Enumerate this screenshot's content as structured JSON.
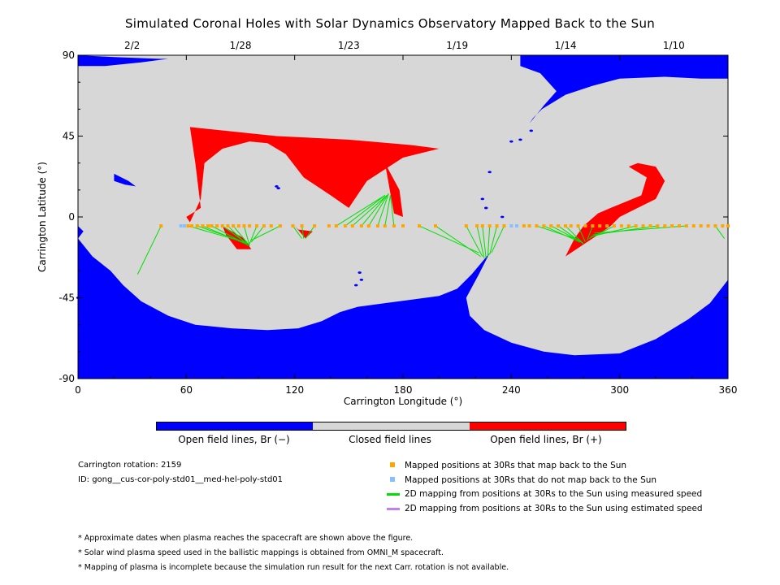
{
  "title": "Simulated Coronal Holes with Solar Dynamics Observatory Mapped Back to the Sun",
  "colors": {
    "open_negative": "#0000ff",
    "closed": "#d7d7d7",
    "open_positive": "#ff0000",
    "mapped": "#ffa500",
    "unmapped": "#87bfff",
    "measured_line": "#00e000",
    "estimated_line": "#c080f0"
  },
  "chart_data": {
    "type": "map",
    "xlabel": "Carrington Longitude (°)",
    "ylabel": "Carrington Latitude (°)",
    "xlim": [
      0,
      360
    ],
    "ylim": [
      -90,
      90
    ],
    "x_ticks": [
      0,
      60,
      120,
      180,
      240,
      300,
      360
    ],
    "y_ticks": [
      90,
      45,
      0,
      -45,
      -90
    ],
    "top_axis": {
      "labels": [
        "2/2",
        "1/28",
        "1/23",
        "1/19",
        "1/14",
        "1/10"
      ],
      "longitudes": [
        30,
        90,
        150,
        210,
        270,
        330
      ]
    },
    "colorbar": [
      {
        "label": "Open field lines, Br (−)",
        "color": "#0000ff"
      },
      {
        "label": "Closed field lines",
        "color": "#d7d7d7"
      },
      {
        "label": "Open field lines, Br (+)",
        "color": "#ff0000"
      }
    ],
    "positive_polarity_regions": [
      [
        [
          62,
          50
        ],
        [
          110,
          45
        ],
        [
          150,
          43
        ],
        [
          185,
          40
        ],
        [
          200,
          38
        ],
        [
          180,
          33
        ],
        [
          160,
          20
        ],
        [
          150,
          5
        ],
        [
          140,
          12
        ],
        [
          125,
          22
        ],
        [
          115,
          35
        ],
        [
          105,
          41
        ],
        [
          95,
          42
        ],
        [
          80,
          38
        ],
        [
          70,
          30
        ],
        [
          68,
          10
        ],
        [
          62,
          -3
        ],
        [
          60,
          0
        ],
        [
          68,
          5
        ],
        [
          65,
          30
        ],
        [
          62,
          50
        ]
      ],
      [
        [
          170,
          30
        ],
        [
          178,
          15
        ],
        [
          180,
          0
        ],
        [
          175,
          2
        ],
        [
          170,
          30
        ]
      ],
      [
        [
          120,
          -5
        ],
        [
          126,
          -12
        ],
        [
          130,
          -8
        ],
        [
          122,
          -7
        ]
      ],
      [
        [
          80,
          -5
        ],
        [
          92,
          -12
        ],
        [
          96,
          -18
        ],
        [
          88,
          -18
        ],
        [
          82,
          -10
        ]
      ],
      [
        [
          270,
          -22
        ],
        [
          285,
          -12
        ],
        [
          295,
          -5
        ],
        [
          300,
          0
        ],
        [
          310,
          5
        ],
        [
          320,
          10
        ],
        [
          325,
          20
        ],
        [
          320,
          28
        ],
        [
          310,
          30
        ],
        [
          305,
          28
        ],
        [
          315,
          22
        ],
        [
          312,
          12
        ],
        [
          295,
          5
        ],
        [
          288,
          2
        ],
        [
          280,
          -5
        ],
        [
          275,
          -12
        ],
        [
          270,
          -22
        ]
      ]
    ],
    "mapped_points": {
      "latitude": -5,
      "longitudes": [
        46,
        61,
        63,
        66,
        69,
        72,
        74,
        77,
        80,
        83,
        86,
        89,
        92,
        95,
        99,
        103,
        107,
        112,
        119,
        124,
        131,
        139,
        143,
        148,
        152,
        157,
        161,
        166,
        170,
        175,
        180,
        189,
        198,
        215,
        221,
        224,
        228,
        232,
        236,
        247,
        250,
        254,
        258,
        262,
        266,
        270,
        273,
        277,
        281,
        285,
        289,
        293,
        297,
        301,
        305,
        309,
        313,
        317,
        321,
        325,
        329,
        333,
        337,
        341,
        345,
        349,
        353,
        357,
        360
      ]
    },
    "unmapped_points": {
      "latitude": -5,
      "longitudes": [
        57,
        59,
        240,
        243
      ]
    },
    "mapping_lines": [
      {
        "from": [
          46,
          -5
        ],
        "to": [
          33,
          -32
        ]
      },
      {
        "from": [
          61,
          -5
        ],
        "to": [
          92,
          -14
        ]
      },
      {
        "from": [
          66,
          -5
        ],
        "to": [
          92,
          -14
        ]
      },
      {
        "from": [
          69,
          -5
        ],
        "to": [
          93,
          -15
        ]
      },
      {
        "from": [
          74,
          -5
        ],
        "to": [
          93,
          -15
        ]
      },
      {
        "from": [
          80,
          -5
        ],
        "to": [
          94,
          -15
        ]
      },
      {
        "from": [
          83,
          -5
        ],
        "to": [
          94,
          -16
        ]
      },
      {
        "from": [
          86,
          -5
        ],
        "to": [
          95,
          -16
        ]
      },
      {
        "from": [
          92,
          -5
        ],
        "to": [
          95,
          -16
        ]
      },
      {
        "from": [
          99,
          -5
        ],
        "to": [
          95,
          -15
        ]
      },
      {
        "from": [
          103,
          -5
        ],
        "to": [
          96,
          -14
        ]
      },
      {
        "from": [
          112,
          -5
        ],
        "to": [
          96,
          -13
        ]
      },
      {
        "from": [
          119,
          -5
        ],
        "to": [
          124,
          -12
        ]
      },
      {
        "from": [
          124,
          -5
        ],
        "to": [
          125,
          -12
        ]
      },
      {
        "from": [
          131,
          -5
        ],
        "to": [
          126,
          -12
        ]
      },
      {
        "from": [
          143,
          -5
        ],
        "to": [
          170,
          12
        ]
      },
      {
        "from": [
          148,
          -5
        ],
        "to": [
          170,
          12
        ]
      },
      {
        "from": [
          152,
          -5
        ],
        "to": [
          171,
          12
        ]
      },
      {
        "from": [
          157,
          -5
        ],
        "to": [
          171,
          12
        ]
      },
      {
        "from": [
          161,
          -5
        ],
        "to": [
          172,
          13
        ]
      },
      {
        "from": [
          166,
          -5
        ],
        "to": [
          172,
          13
        ]
      },
      {
        "from": [
          170,
          -5
        ],
        "to": [
          173,
          12
        ]
      },
      {
        "from": [
          175,
          -5
        ],
        "to": [
          173,
          12
        ]
      },
      {
        "from": [
          189,
          -5
        ],
        "to": [
          222,
          -20
        ]
      },
      {
        "from": [
          198,
          -5
        ],
        "to": [
          223,
          -22
        ]
      },
      {
        "from": [
          215,
          -5
        ],
        "to": [
          224,
          -22
        ]
      },
      {
        "from": [
          221,
          -5
        ],
        "to": [
          225,
          -23
        ]
      },
      {
        "from": [
          224,
          -5
        ],
        "to": [
          226,
          -23
        ]
      },
      {
        "from": [
          228,
          -5
        ],
        "to": [
          227,
          -22
        ]
      },
      {
        "from": [
          232,
          -5
        ],
        "to": [
          228,
          -21
        ]
      },
      {
        "from": [
          236,
          -5
        ],
        "to": [
          229,
          -20
        ]
      },
      {
        "from": [
          254,
          -5
        ],
        "to": [
          278,
          -13
        ]
      },
      {
        "from": [
          258,
          -5
        ],
        "to": [
          278,
          -14
        ]
      },
      {
        "from": [
          262,
          -5
        ],
        "to": [
          279,
          -14
        ]
      },
      {
        "from": [
          266,
          -5
        ],
        "to": [
          280,
          -15
        ]
      },
      {
        "from": [
          270,
          -5
        ],
        "to": [
          280,
          -15
        ]
      },
      {
        "from": [
          277,
          -5
        ],
        "to": [
          281,
          -14
        ]
      },
      {
        "from": [
          285,
          -5
        ],
        "to": [
          282,
          -13
        ]
      },
      {
        "from": [
          297,
          -5
        ],
        "to": [
          283,
          -12
        ]
      },
      {
        "from": [
          309,
          -5
        ],
        "to": [
          284,
          -11
        ]
      },
      {
        "from": [
          321,
          -5
        ],
        "to": [
          285,
          -10
        ]
      },
      {
        "from": [
          337,
          -5
        ],
        "to": [
          286,
          -9
        ]
      },
      {
        "from": [
          353,
          -5
        ],
        "to": [
          358,
          -12
        ]
      }
    ]
  },
  "colorbar_labels": {
    "negative": "Open field lines, Br (−)",
    "closed": "Closed field lines",
    "positive": "Open field lines, Br (+)"
  },
  "info": {
    "rotation": "Carrington rotation: 2159",
    "id": "ID: gong__cus-cor-poly-std01__med-hel-poly-std01"
  },
  "legend": {
    "mapped": "Mapped positions at 30Rs that map back to the Sun",
    "unmapped": "Mapped positions at 30Rs that do not map back to the Sun",
    "measured": "2D mapping from positions at 30Rs to the Sun using measured speed",
    "estimated": "2D mapping from positions at 30Rs to the Sun using estimated speed"
  },
  "notes": [
    "* Approximate dates when plasma reaches the spacecraft are shown above the figure.",
    "* Solar wind plasma speed used in the ballistic mappings is obtained from OMNI_M spacecraft.",
    "* Mapping of plasma is incomplete because the simulation run result for the next Carr. rotation is not available."
  ]
}
